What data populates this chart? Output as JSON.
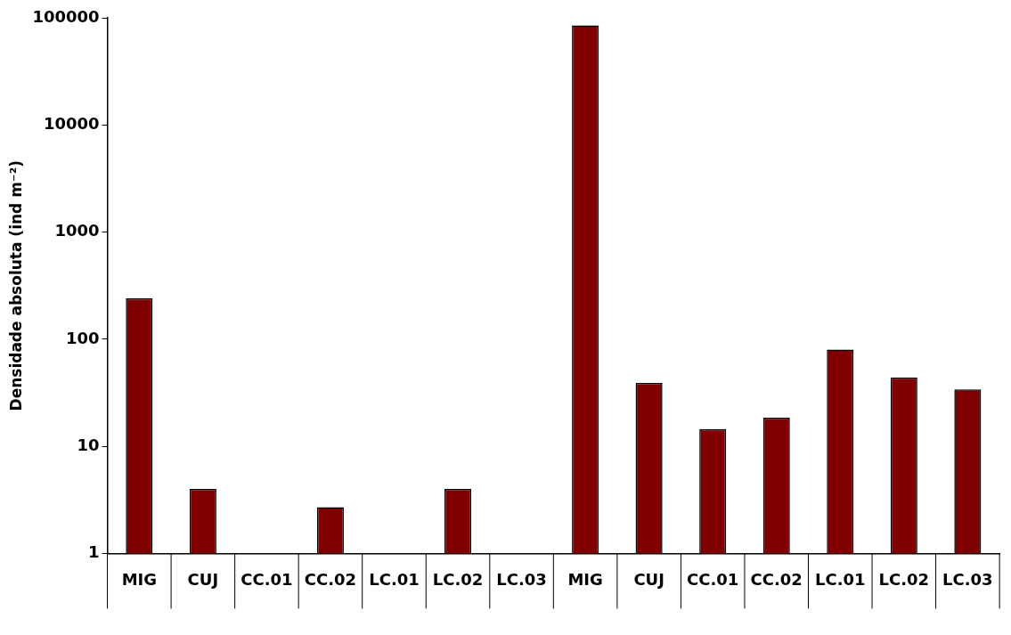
{
  "chart_data": {
    "type": "bar",
    "ylabel": "Densidade absoluta (ind m⁻²)",
    "categories": [
      "MIG",
      "CUJ",
      "CC.01",
      "CC.02",
      "LC.01",
      "LC.02",
      "LC.03",
      "MIG",
      "CUJ",
      "CC.01",
      "CC.02",
      "LC.01",
      "LC.02",
      "LC.03"
    ],
    "values": [
      240,
      4,
      null,
      2.7,
      null,
      4,
      null,
      85000,
      39,
      14.5,
      18.5,
      80,
      44,
      34
    ],
    "color": "#800000",
    "log": true,
    "ylim": [
      1,
      100000
    ],
    "yticks": [
      1,
      10,
      100,
      1000,
      10000,
      100000
    ],
    "legend": false
  }
}
